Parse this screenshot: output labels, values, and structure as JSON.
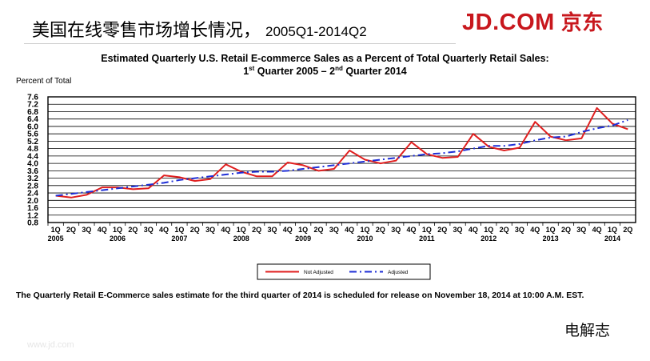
{
  "slide": {
    "title_cn": "美国在线零售市场增长情况，",
    "title_range": "2005Q1-2014Q2",
    "brand_latin": "JD.COM",
    "brand_cn": "京东",
    "watermark": "电解志",
    "footer_url": "www.jd.com",
    "note": "The Quarterly Retail E-Commerce sales estimate for the third quarter of 2014 is scheduled for release on November 18, 2014 at 10:00 A.M. EST."
  },
  "chart_data": {
    "type": "line",
    "title_line1": "Estimated Quarterly U.S. Retail E-commerce Sales as a Percent of Total Quarterly Retail Sales:",
    "title_line2_parts": [
      "1",
      "st",
      " Quarter 2005 – 2",
      "nd",
      " Quarter 2014"
    ],
    "ylabel": "Percent of Total",
    "ylim": [
      0.8,
      7.6
    ],
    "yticks": [
      "0.8",
      "1.2",
      "1.6",
      "2.0",
      "2.4",
      "2.8",
      "3.2",
      "3.6",
      "4.0",
      "4.4",
      "4.8",
      "5.2",
      "5.6",
      "6.0",
      "6.4",
      "6.8",
      "7.2",
      "7.6"
    ],
    "grid": true,
    "categories": [
      "1Q",
      "2Q",
      "3Q",
      "4Q",
      "1Q",
      "2Q",
      "3Q",
      "4Q",
      "1Q",
      "2Q",
      "3Q",
      "4Q",
      "1Q",
      "2Q",
      "3Q",
      "4Q",
      "1Q",
      "2Q",
      "3Q",
      "4Q",
      "1Q",
      "2Q",
      "3Q",
      "4Q",
      "1Q",
      "2Q",
      "3Q",
      "4Q",
      "1Q",
      "2Q",
      "3Q",
      "4Q",
      "1Q",
      "2Q",
      "3Q",
      "4Q",
      "1Q",
      "2Q"
    ],
    "years": [
      "2005",
      "2006",
      "2007",
      "2008",
      "2009",
      "2010",
      "2011",
      "2012",
      "2013",
      "2014"
    ],
    "legend_position": "bottom-center",
    "series": [
      {
        "name": "Not Adjusted",
        "color": "#e02020",
        "style": "solid",
        "values": [
          2.25,
          2.15,
          2.3,
          2.7,
          2.7,
          2.6,
          2.65,
          3.35,
          3.25,
          3.05,
          3.15,
          3.95,
          3.55,
          3.3,
          3.3,
          4.05,
          3.9,
          3.6,
          3.7,
          4.7,
          4.2,
          4.0,
          4.15,
          5.15,
          4.5,
          4.3,
          4.35,
          5.6,
          4.9,
          4.7,
          4.85,
          6.25,
          5.45,
          5.25,
          5.35,
          7.0,
          6.15,
          5.85
        ]
      },
      {
        "name": "Adjusted",
        "color": "#1f2fd6",
        "style": "dashed",
        "values": [
          2.25,
          2.35,
          2.45,
          2.55,
          2.65,
          2.75,
          2.85,
          2.95,
          3.1,
          3.2,
          3.3,
          3.4,
          3.5,
          3.55,
          3.55,
          3.6,
          3.7,
          3.8,
          3.9,
          4.0,
          4.1,
          4.2,
          4.3,
          4.4,
          4.5,
          4.55,
          4.65,
          4.8,
          4.95,
          4.95,
          5.05,
          5.25,
          5.4,
          5.45,
          5.7,
          5.9,
          6.05,
          6.35
        ]
      }
    ]
  }
}
